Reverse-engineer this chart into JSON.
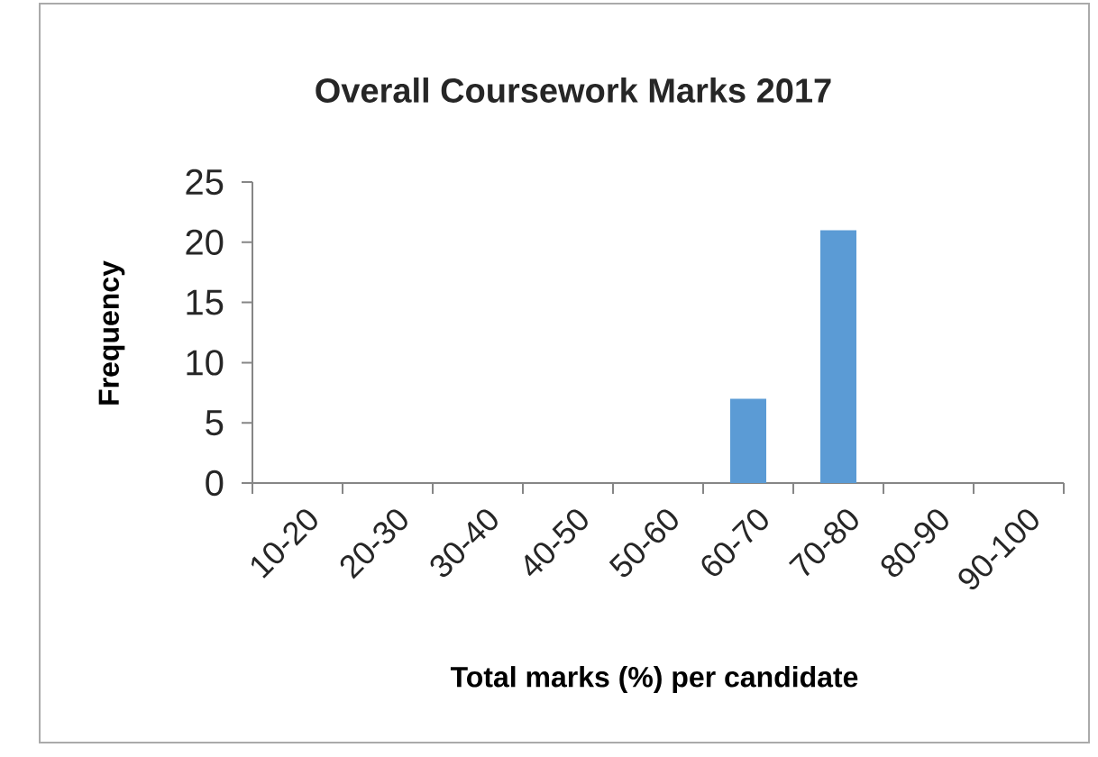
{
  "chart_data": {
    "type": "bar",
    "title": "Overall Coursework Marks 2017",
    "xlabel": "Total marks (%) per candidate",
    "ylabel": "Frequency",
    "categories": [
      "10-20",
      "20-30",
      "30-40",
      "40-50",
      "50-60",
      "60-70",
      "70-80",
      "80-90",
      "90-100"
    ],
    "values": [
      0,
      0,
      0,
      0,
      0,
      7,
      21,
      0,
      0
    ],
    "color": "#5b9bd5",
    "ylim": [
      0,
      25
    ],
    "yticks": [
      0,
      5,
      10,
      15,
      20,
      25
    ]
  }
}
